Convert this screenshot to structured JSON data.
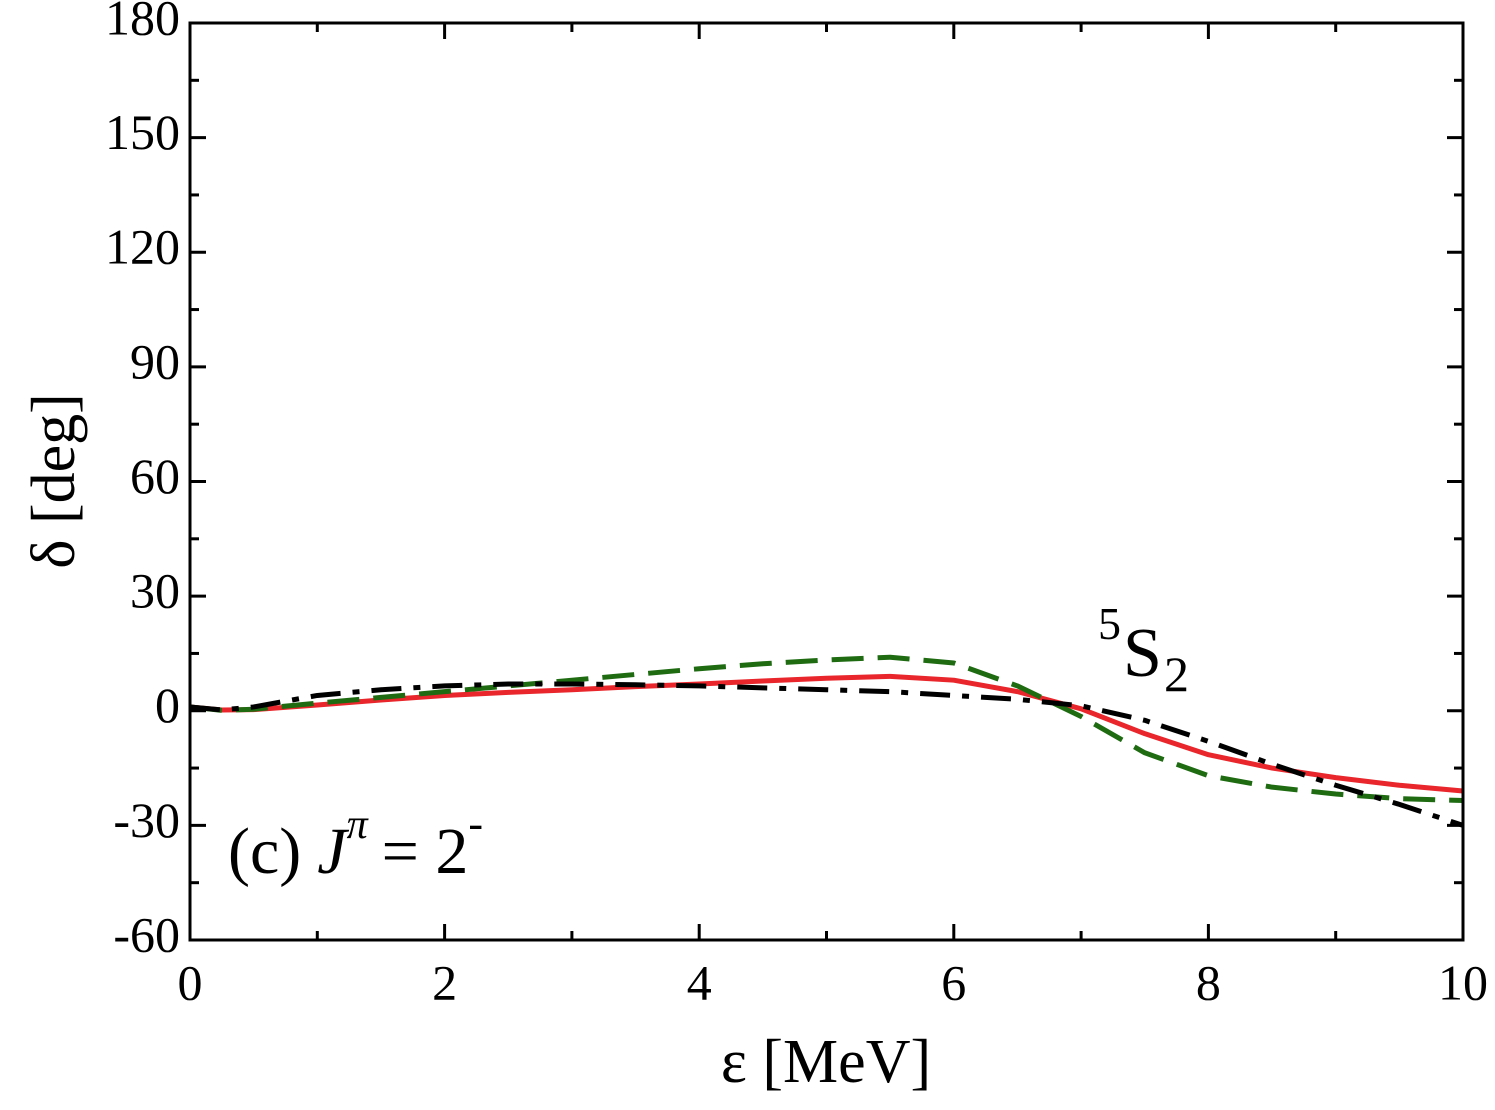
{
  "chart_data": {
    "type": "line",
    "xlabel": "ε [MeV]",
    "ylabel": "δ [deg]",
    "channel_label": {
      "superscript": "5",
      "base": "S",
      "subscript": "2"
    },
    "panel_label": {
      "prefix": "(c)",
      "symbol": "J",
      "superscript": "π",
      "equals": "= 2",
      "sign": "-"
    },
    "x": [
      0,
      0.25,
      0.5,
      1,
      1.5,
      2,
      2.5,
      3,
      3.5,
      4,
      4.5,
      5,
      5.5,
      6,
      6.5,
      7,
      7.5,
      8,
      8.5,
      9,
      9.5,
      10
    ],
    "series": [
      {
        "color": "#e8262b",
        "style": "solid",
        "values": [
          1,
          0.2,
          0.3,
          1.5,
          2.8,
          4,
          4.8,
          5.5,
          6.3,
          7,
          7.8,
          8.5,
          9,
          8,
          5,
          0.5,
          -6,
          -11.5,
          -15,
          -17.5,
          -19.5,
          -21
        ]
      },
      {
        "color": "#1e6b12",
        "style": "dashed",
        "values": [
          1,
          0.1,
          0.4,
          2,
          3.5,
          5,
          6.5,
          8,
          9.5,
          11,
          12.3,
          13.3,
          14,
          12.5,
          6.5,
          -1.5,
          -11,
          -17,
          -20,
          -21.8,
          -23,
          -23.5
        ]
      },
      {
        "color": "#000000",
        "style": "dashdot",
        "values": [
          1,
          0.2,
          1,
          4,
          5.5,
          6.5,
          7,
          7,
          6.8,
          6.5,
          6,
          5.5,
          5,
          4,
          3,
          1.3,
          -2.5,
          -8,
          -14,
          -19.5,
          -24.5,
          -30
        ]
      }
    ],
    "xlim": [
      0,
      10
    ],
    "xticks": [
      0,
      2,
      4,
      6,
      8,
      10
    ],
    "xminorticks": [
      1,
      3,
      5,
      7,
      9
    ],
    "ylim": [
      -60,
      180
    ],
    "yticks": [
      -60,
      -30,
      0,
      30,
      60,
      90,
      120,
      150,
      180
    ],
    "yminorticks": [
      -45,
      -15,
      15,
      45,
      75,
      105,
      135,
      165
    ],
    "grid": false
  }
}
